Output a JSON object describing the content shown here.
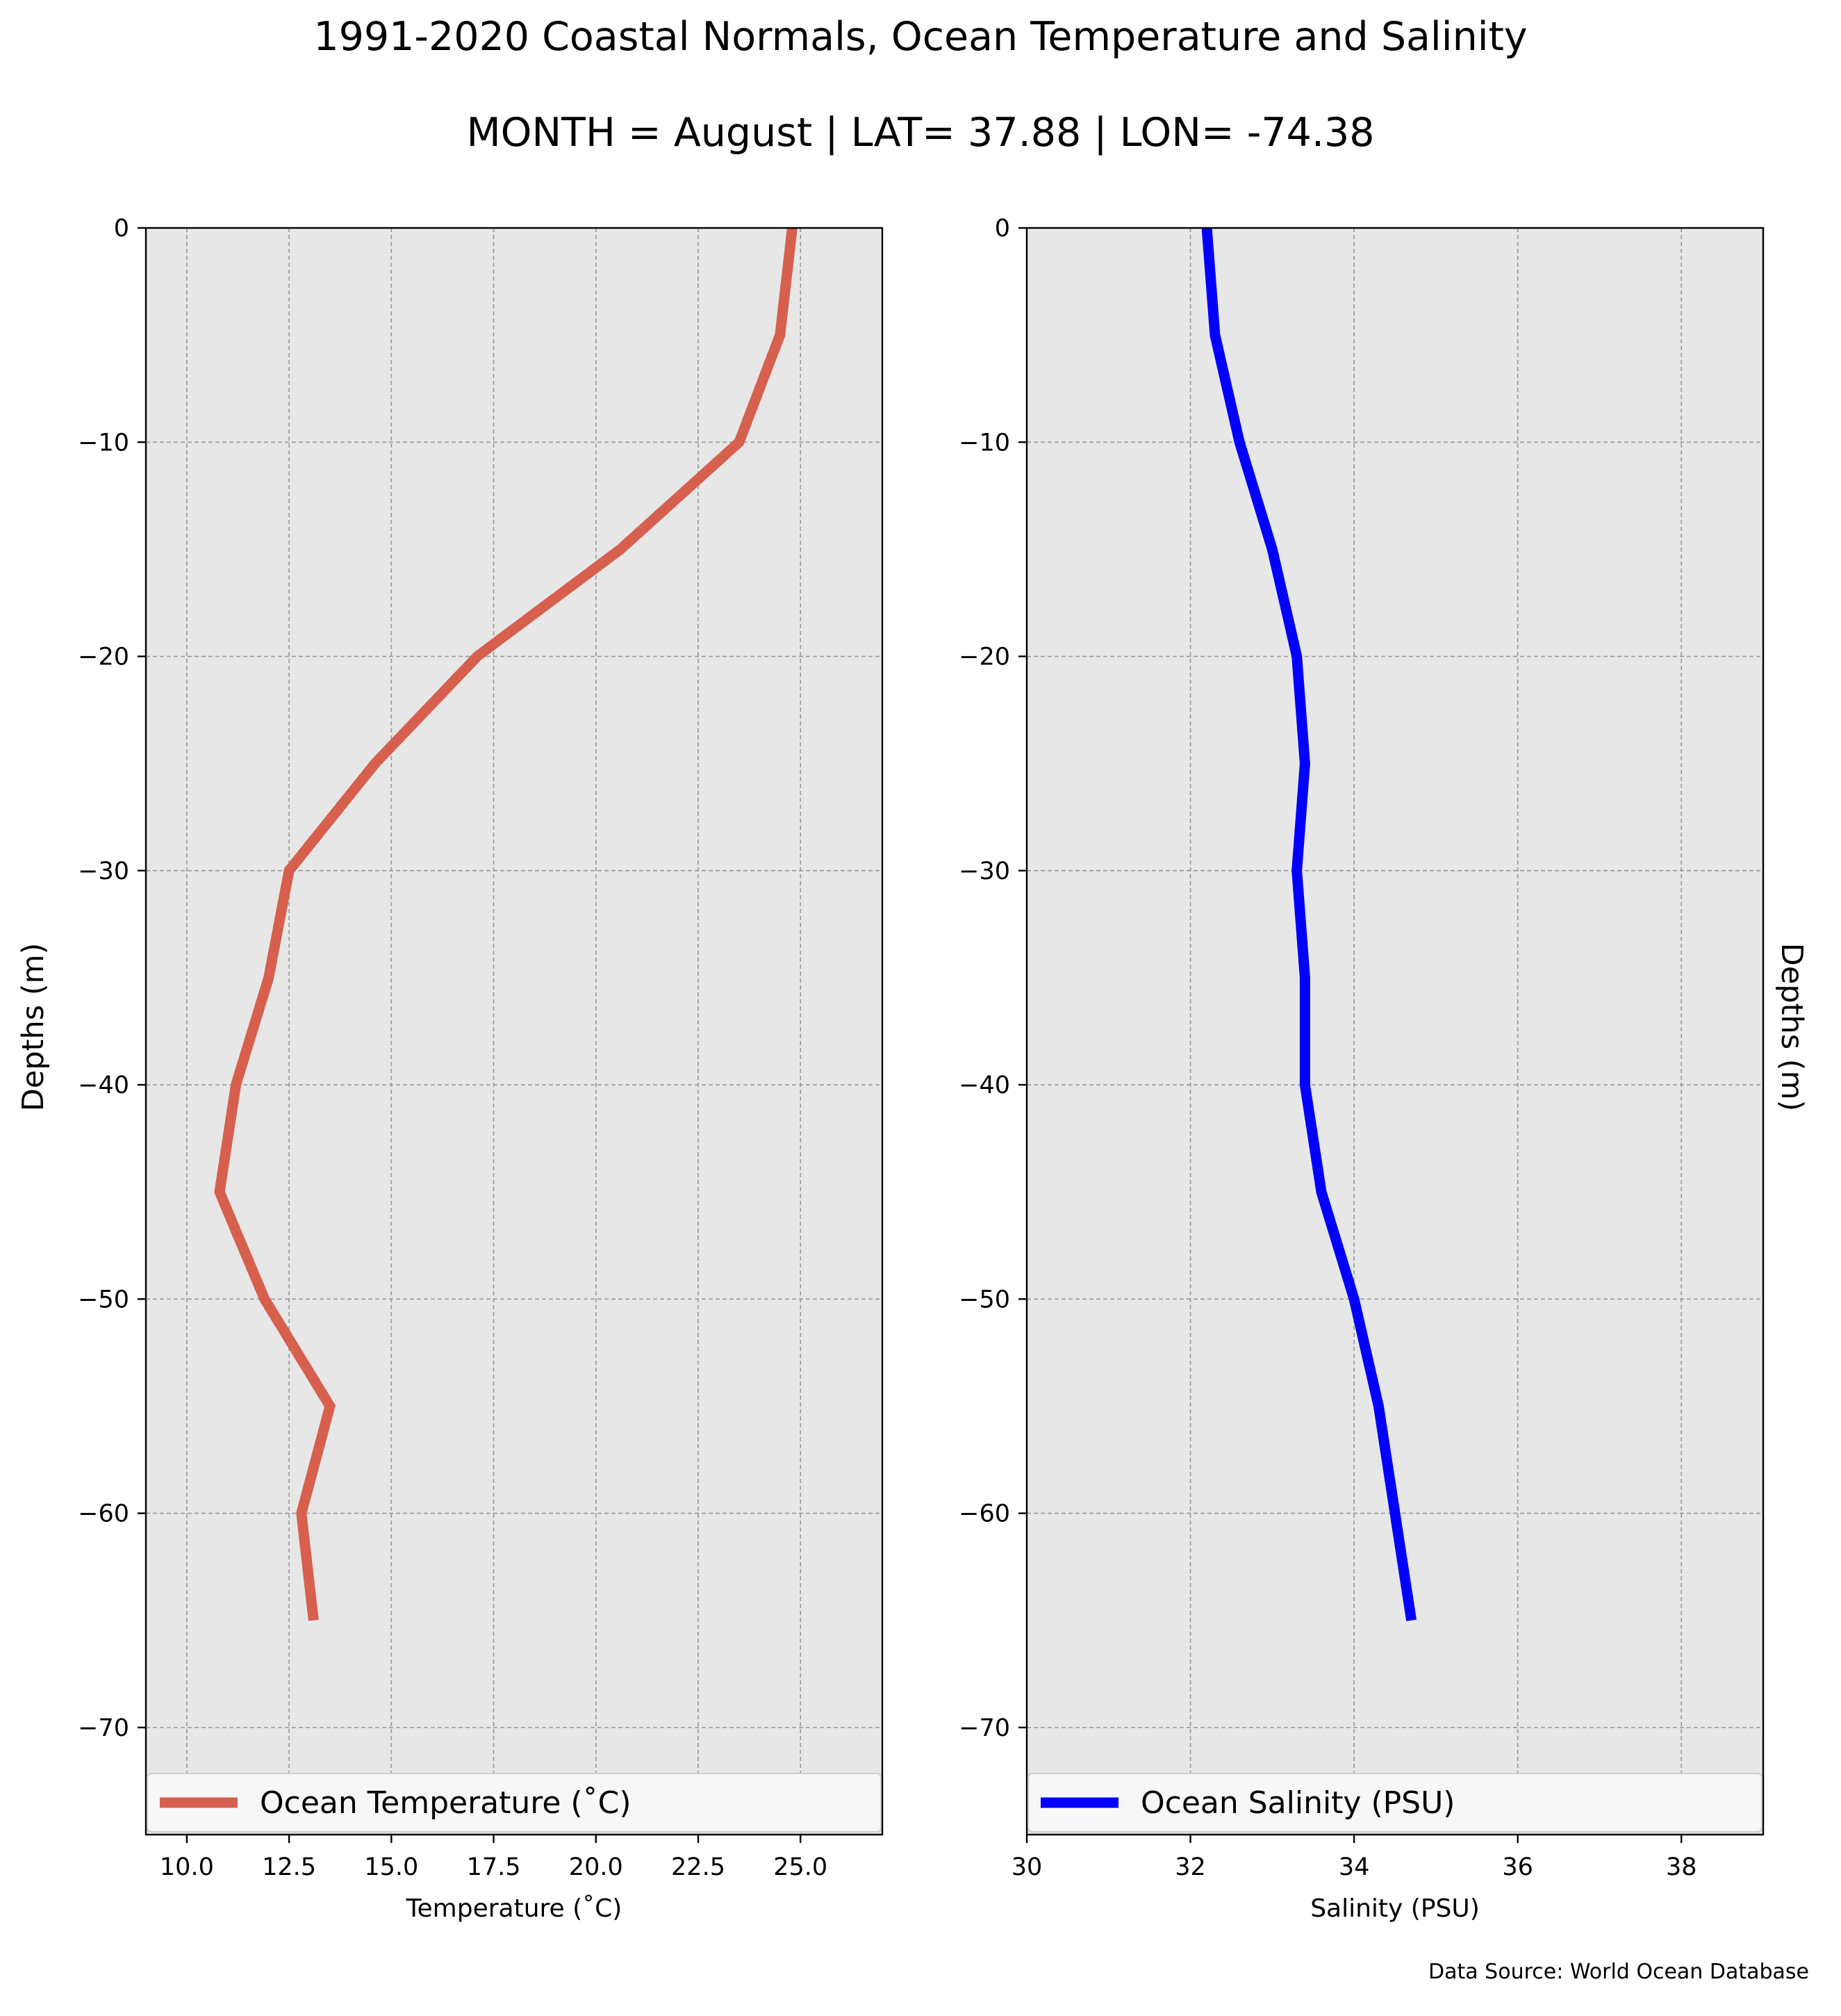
{
  "title": "1991-2020 Coastal Normals, Ocean Temperature and Salinity",
  "subtitle": "MONTH = August | LAT= 37.88 | LON= -74.38",
  "footer": "Data Source: World Ocean Database",
  "colors": {
    "temperature_line": "#d6604d",
    "salinity_line": "#0000ff",
    "plot_background": "#e7e7e7",
    "grid": "#999999"
  },
  "chart_data": [
    {
      "type": "line",
      "xlabel": "Temperature ($^\\circ$C)",
      "xlabel_display": "Temperature (˚C)",
      "ylabel": "Depths (m)",
      "xlim": [
        9,
        27
      ],
      "ylim": [
        -75,
        0
      ],
      "xticks": [
        10.0,
        12.5,
        15.0,
        17.5,
        20.0,
        22.5,
        25.0
      ],
      "xtick_labels": [
        "10.0",
        "12.5",
        "15.0",
        "17.5",
        "20.0",
        "22.5",
        "25.0"
      ],
      "yticks": [
        0,
        -10,
        -20,
        -30,
        -40,
        -50,
        -60,
        -70
      ],
      "ytick_labels": [
        "0",
        "−10",
        "−20",
        "−30",
        "−40",
        "−50",
        "−60",
        "−70"
      ],
      "grid": true,
      "legend_position": "bottom",
      "series": [
        {
          "name": "Ocean Temperature (˚C)",
          "x": [
            24.8,
            24.5,
            23.5,
            20.6,
            17.1,
            14.6,
            12.5,
            12.0,
            11.2,
            10.8,
            11.9,
            13.5,
            12.8,
            13.1
          ],
          "y": [
            0,
            -5,
            -10,
            -15,
            -20,
            -25,
            -30,
            -35,
            -40,
            -45,
            -50,
            -55,
            -60,
            -65
          ]
        }
      ]
    },
    {
      "type": "line",
      "xlabel": "Salinity (PSU)",
      "ylabel": "Depths (m)",
      "xlim": [
        30,
        39
      ],
      "ylim": [
        -75,
        0
      ],
      "xticks": [
        30,
        32,
        34,
        36,
        38
      ],
      "xtick_labels": [
        "30",
        "32",
        "34",
        "36",
        "38"
      ],
      "yticks": [
        0,
        -10,
        -20,
        -30,
        -40,
        -50,
        -60,
        -70
      ],
      "ytick_labels": [
        "0",
        "−10",
        "−20",
        "−30",
        "−40",
        "−50",
        "−60",
        "−70"
      ],
      "grid": true,
      "legend_position": "bottom",
      "series": [
        {
          "name": "Ocean Salinity (PSU)",
          "x": [
            32.2,
            32.3,
            32.6,
            33.0,
            33.3,
            33.4,
            33.3,
            33.4,
            33.4,
            33.6,
            34.0,
            34.3,
            34.5,
            34.7
          ],
          "y": [
            0,
            -5,
            -10,
            -15,
            -20,
            -25,
            -30,
            -35,
            -40,
            -45,
            -50,
            -55,
            -60,
            -65
          ]
        }
      ]
    }
  ]
}
